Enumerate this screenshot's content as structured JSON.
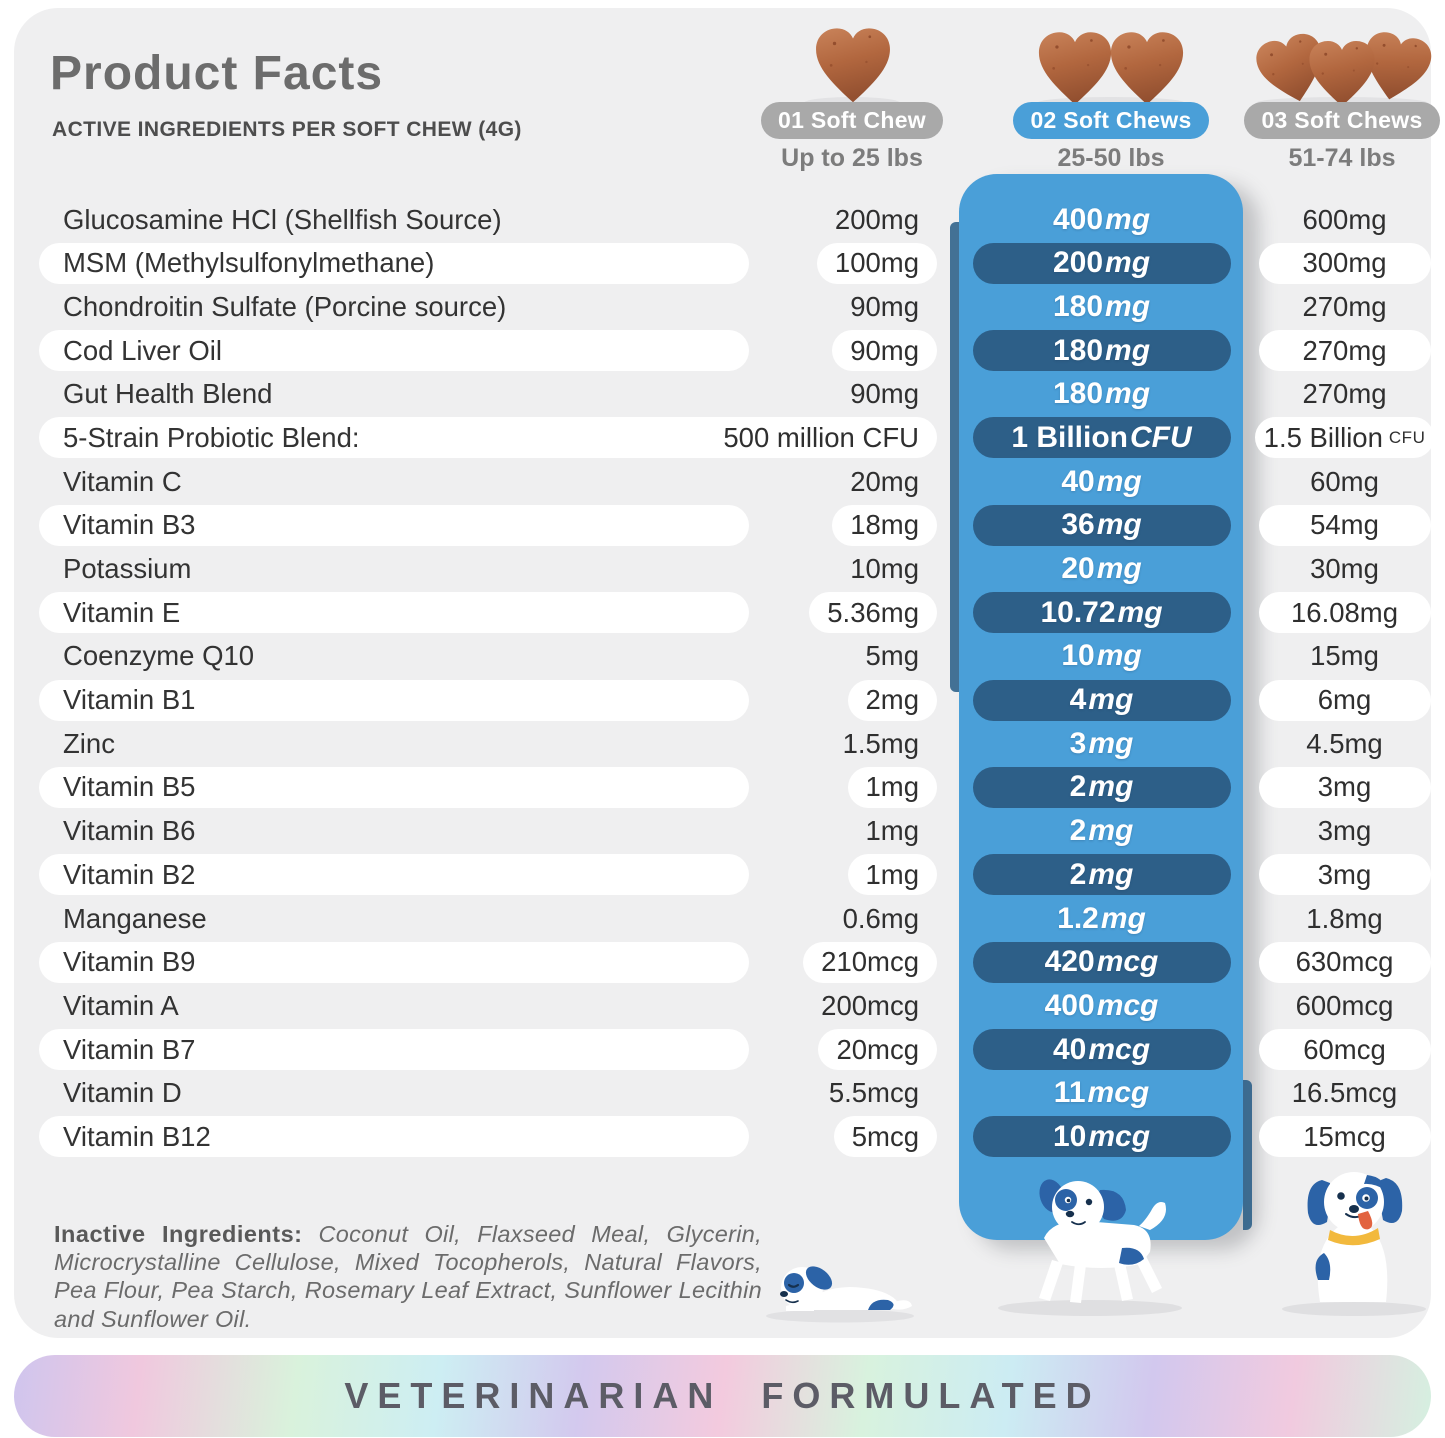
{
  "header": {
    "title": "Product Facts",
    "subtitle": "ACTIVE INGREDIENTS PER SOFT CHEW (4G)",
    "columns": [
      {
        "pill": "01 Soft Chew",
        "weight": "Up to 25 lbs",
        "chews": 1,
        "highlighted": false
      },
      {
        "pill": "02 Soft Chews",
        "weight": "25-50 lbs",
        "chews": 2,
        "highlighted": true
      },
      {
        "pill": "03 Soft Chews",
        "weight": "51-74 lbs",
        "chews": 3,
        "highlighted": false
      }
    ]
  },
  "table": {
    "rows": [
      {
        "name": "Glucosamine HCl (Shellfish Source)",
        "col1": "200mg",
        "col2": "400mg",
        "col3": "600mg"
      },
      {
        "name": "MSM (Methylsulfonylmethane)",
        "col1": "100mg",
        "col2": "200mg",
        "col3": "300mg"
      },
      {
        "name": "Chondroitin Sulfate (Porcine source)",
        "col1": "90mg",
        "col2": "180mg",
        "col3": "270mg"
      },
      {
        "name": "Cod Liver Oil",
        "col1": "90mg",
        "col2": "180mg",
        "col3": "270mg"
      },
      {
        "name": "Gut Health Blend",
        "col1": "90mg",
        "col2": "180mg",
        "col3": "270mg"
      },
      {
        "name": "5-Strain Probiotic Blend:",
        "col1": "500 million CFU",
        "col2": "1 Billion CFU",
        "col3": "1.5 Billion CFU"
      },
      {
        "name": "Vitamin C",
        "col1": "20mg",
        "col2": "40mg",
        "col3": "60mg"
      },
      {
        "name": "Vitamin B3",
        "col1": "18mg",
        "col2": "36mg",
        "col3": "54mg"
      },
      {
        "name": "Potassium",
        "col1": "10mg",
        "col2": "20mg",
        "col3": "30mg"
      },
      {
        "name": "Vitamin E",
        "col1": "5.36mg",
        "col2": "10.72mg",
        "col3": "16.08mg"
      },
      {
        "name": "Coenzyme Q10",
        "col1": "5mg",
        "col2": "10mg",
        "col3": "15mg"
      },
      {
        "name": "Vitamin B1",
        "col1": "2mg",
        "col2": "4mg",
        "col3": "6mg"
      },
      {
        "name": "Zinc",
        "col1": "1.5mg",
        "col2": "3mg",
        "col3": "4.5mg"
      },
      {
        "name": "Vitamin B5",
        "col1": "1mg",
        "col2": "2mg",
        "col3": "3mg"
      },
      {
        "name": "Vitamin B6",
        "col1": "1mg",
        "col2": "2mg",
        "col3": "3mg"
      },
      {
        "name": "Vitamin B2",
        "col1": "1mg",
        "col2": "2mg",
        "col3": "3mg"
      },
      {
        "name": "Manganese",
        "col1": "0.6mg",
        "col2": "1.2mg",
        "col3": "1.8mg"
      },
      {
        "name": "Vitamin B9",
        "col1": "210mcg",
        "col2": "420mcg",
        "col3": "630mcg"
      },
      {
        "name": "Vitamin A",
        "col1": "200mcg",
        "col2": "400mcg",
        "col3": "600mcg"
      },
      {
        "name": "Vitamin B7",
        "col1": "20mcg",
        "col2": "40mcg",
        "col3": "60mcg"
      },
      {
        "name": "Vitamin D",
        "col1": "5.5mcg",
        "col2": "11mcg",
        "col3": "16.5mcg"
      },
      {
        "name": "Vitamin B12",
        "col1": "5mcg",
        "col2": "10mcg",
        "col3": "15mcg"
      }
    ]
  },
  "inactive": {
    "label": "Inactive Ingredients:",
    "text": "Coconut Oil, Flaxseed Meal, Glycerin, Microcrystalline Cellulose, Mixed Tocopherols, Natural Flavors, Pea Flour, Pea Starch, Rosemary Leaf Extract, Sunflower Lecithin and Sunflower Oil."
  },
  "footer": {
    "text": "VETERINARIAN FORMULATED"
  },
  "colors": {
    "card_background": "#efeff0",
    "band_blue": "#4a9fd8",
    "pill_navy": "#2d5f88",
    "pill_gray": "#a9a9a9",
    "chew_brown": "#b2673f",
    "footer_text": "#5c5c66"
  }
}
